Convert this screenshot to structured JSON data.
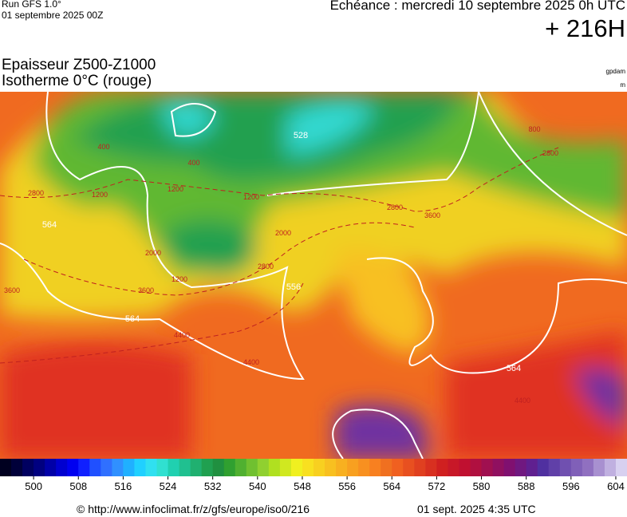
{
  "header": {
    "run": "Run GFS 1.0°",
    "run_date": "01 septembre 2025 00Z",
    "valid": "Echéance : mercredi 10 septembre 2025 0h UTC",
    "lead": "+ 216H"
  },
  "title": {
    "line1": "Epaisseur Z500-Z1000",
    "line2": "Isotherme 0°C (rouge)",
    "unit1": "gpdam",
    "unit2": "m"
  },
  "map_labels": {
    "thickness": [
      "564",
      "528",
      "556",
      "564",
      "564"
    ],
    "iso0": [
      "2800",
      "2800",
      "1200",
      "400",
      "400",
      "1200",
      "3600",
      "2000",
      "1200",
      "3600",
      "4400",
      "4400",
      "2800",
      "2000",
      "3600",
      "2800",
      "4400",
      "800",
      "1200"
    ]
  },
  "colorbar": {
    "range": [
      494,
      606
    ],
    "labels": [
      500,
      508,
      516,
      524,
      532,
      540,
      548,
      556,
      564,
      572,
      580,
      588,
      596,
      604
    ],
    "colors": [
      "#000020",
      "#00003a",
      "#000060",
      "#000080",
      "#0000a8",
      "#0000d0",
      "#0000f0",
      "#1020ff",
      "#2050ff",
      "#3070ff",
      "#3090ff",
      "#20b0ff",
      "#20d0ff",
      "#30e0f0",
      "#30e0d0",
      "#20d0b0",
      "#20c090",
      "#20b070",
      "#20a050",
      "#209040",
      "#30a030",
      "#50b030",
      "#70c030",
      "#90d030",
      "#b0e020",
      "#d0e820",
      "#f0f020",
      "#f8e020",
      "#f8d020",
      "#f8c020",
      "#f8b020",
      "#f8a020",
      "#f89020",
      "#f88020",
      "#f07020",
      "#f06020",
      "#e85020",
      "#e04020",
      "#d83020",
      "#d02020",
      "#c81828",
      "#c01030",
      "#b01040",
      "#a01050",
      "#901060",
      "#801070",
      "#701880",
      "#602090",
      "#5030a0",
      "#6040a8",
      "#7050b0",
      "#8060b8",
      "#9070c0",
      "#a890d0",
      "#c0b0e0",
      "#d8d0f0"
    ]
  },
  "footer": {
    "source": "© http://www.infoclimat.fr/z/gfs/europe/iso0/216",
    "generated": "01 sept. 2025  4:35 UTC"
  }
}
